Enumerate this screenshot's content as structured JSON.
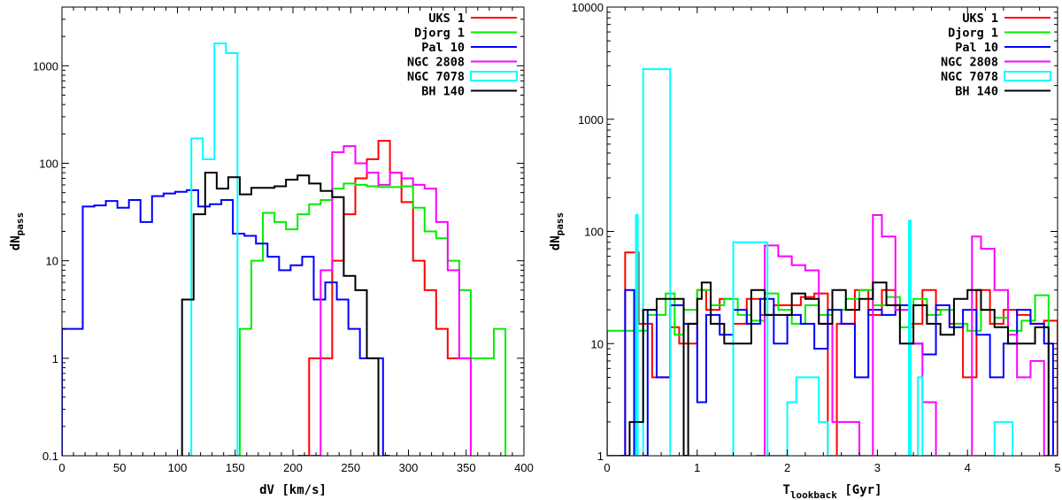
{
  "chart_data": [
    {
      "type": "line",
      "step": true,
      "xlabel": "dV [km/s]",
      "ylabel": "dN",
      "ylabel_sub": "pass",
      "xlim": [
        0,
        400
      ],
      "ylim": [
        0.1,
        4000
      ],
      "yscale": "log",
      "xticks": [
        0,
        50,
        100,
        150,
        200,
        250,
        300,
        350,
        400
      ],
      "yticks": [
        0.1,
        1,
        10,
        100,
        1000
      ],
      "ytick_labels": [
        "0.1",
        "1",
        "10",
        "100",
        "1000"
      ],
      "legend_position": "top-right",
      "series": [
        {
          "name": "UKS 1",
          "color": "#ff0000",
          "x": [
            204,
            214,
            224,
            234,
            244,
            254,
            264,
            274,
            284,
            294,
            304,
            314,
            324,
            334,
            344,
            354
          ],
          "y": [
            0.1,
            1,
            1,
            10,
            30,
            70,
            110,
            170,
            80,
            40,
            10,
            5,
            2,
            1,
            1,
            0.1
          ]
        },
        {
          "name": "Djorg 1",
          "color": "#00ee00",
          "x": [
            144,
            154,
            164,
            174,
            184,
            194,
            204,
            214,
            224,
            234,
            244,
            254,
            264,
            274,
            284,
            294,
            304,
            314,
            324,
            334,
            344,
            354,
            364,
            374,
            384
          ],
          "y": [
            0.1,
            2,
            10,
            31,
            25,
            21,
            30,
            38,
            42,
            55,
            62,
            60,
            58,
            57,
            57,
            58,
            35,
            20,
            17,
            10,
            5,
            1,
            1,
            2,
            0.1
          ]
        },
        {
          "name": "Pal 10",
          "color": "#0000ff",
          "x": [
            0,
            18,
            28,
            38,
            48,
            58,
            68,
            78,
            88,
            98,
            108,
            118,
            128,
            138,
            148,
            158,
            168,
            178,
            188,
            198,
            208,
            218,
            228,
            238,
            248,
            258,
            268,
            278,
            284
          ],
          "y": [
            2,
            36,
            37,
            41,
            35,
            42,
            25,
            46,
            49,
            51,
            53,
            36,
            38,
            42,
            19,
            18,
            15,
            11,
            8,
            9,
            11,
            4,
            6,
            4,
            2,
            1,
            1,
            0.1,
            0.1
          ]
        },
        {
          "name": "NGC 2808",
          "color": "#ff00ff",
          "x": [
            214,
            224,
            234,
            244,
            254,
            264,
            274,
            284,
            294,
            304,
            314,
            324,
            334,
            344,
            354
          ],
          "y": [
            0.1,
            8,
            130,
            150,
            100,
            80,
            60,
            80,
            70,
            60,
            55,
            25,
            8,
            1,
            0.1
          ]
        },
        {
          "name": "NGC 7078",
          "color": "#00ffff",
          "x": [
            112,
            122,
            132,
            142,
            152
          ],
          "y": [
            180,
            110,
            1700,
            1350,
            0.1
          ]
        },
        {
          "name": "BH 140",
          "color": "#000000",
          "x": [
            104,
            114,
            124,
            134,
            144,
            154,
            164,
            174,
            184,
            194,
            204,
            214,
            224,
            234,
            244,
            254,
            264,
            274
          ],
          "y": [
            4,
            30,
            80,
            55,
            72,
            48,
            56,
            56,
            58,
            68,
            75,
            62,
            52,
            45,
            7,
            5,
            1,
            0.1
          ]
        }
      ]
    },
    {
      "type": "line",
      "step": true,
      "xlabel": "T",
      "xlabel_sub": "lookback",
      "xlabel_unit": "[Gyr]",
      "ylabel": "dN",
      "ylabel_sub": "pass",
      "xlim": [
        0,
        5
      ],
      "ylim": [
        1,
        10000
      ],
      "yscale": "log",
      "xticks": [
        0,
        1,
        2,
        3,
        4,
        5
      ],
      "yticks": [
        1,
        10,
        100,
        1000,
        10000
      ],
      "ytick_labels": [
        "1",
        "10",
        "100",
        "1000",
        "10000"
      ],
      "legend_position": "top-right",
      "series": [
        {
          "name": "UKS 1",
          "color": "#ff0000",
          "x": [
            0,
            0.2,
            0.35,
            0.5,
            0.7,
            0.8,
            1.0,
            1.1,
            1.25,
            1.4,
            1.55,
            1.7,
            1.85,
            2.0,
            2.15,
            2.3,
            2.45,
            2.55,
            2.75,
            2.9,
            3.05,
            3.2,
            3.35,
            3.5,
            3.65,
            3.8,
            3.95,
            4.1,
            4.25,
            4.4,
            4.55,
            4.7,
            4.85,
            5.0
          ],
          "y": [
            1,
            65,
            15,
            5,
            14,
            10,
            30,
            20,
            25,
            15,
            25,
            18,
            22,
            22,
            26,
            28,
            1,
            15,
            30,
            18,
            30,
            20,
            15,
            30,
            20,
            15,
            5,
            30,
            15,
            20,
            18,
            15,
            16,
            14
          ]
        },
        {
          "name": "Djorg 1",
          "color": "#00ee00",
          "x": [
            0,
            0.3,
            0.45,
            0.65,
            0.75,
            0.85,
            1.0,
            1.15,
            1.3,
            1.45,
            1.6,
            1.75,
            1.9,
            2.05,
            2.2,
            2.35,
            2.5,
            2.65,
            2.8,
            2.95,
            3.1,
            3.25,
            3.4,
            3.55,
            3.7,
            3.85,
            4.0,
            4.15,
            4.3,
            4.45,
            4.6,
            4.75,
            4.9
          ],
          "y": [
            13,
            13,
            18,
            28,
            12,
            20,
            30,
            22,
            25,
            18,
            16,
            28,
            20,
            15,
            22,
            18,
            20,
            25,
            30,
            22,
            26,
            14,
            25,
            18,
            20,
            15,
            13,
            20,
            17,
            13,
            16,
            27,
            12
          ]
        },
        {
          "name": "Pal 10",
          "color": "#0000ff",
          "x": [
            0.2,
            0.3,
            0.45,
            0.55,
            0.7,
            0.85,
            1.0,
            1.1,
            1.25,
            1.4,
            1.55,
            1.7,
            1.85,
            2.0,
            2.15,
            2.3,
            2.45,
            2.6,
            2.75,
            2.9,
            3.05,
            3.2,
            3.35,
            3.5,
            3.65,
            3.8,
            3.95,
            4.1,
            4.25,
            4.4,
            4.55,
            4.7,
            4.85,
            4.95
          ],
          "y": [
            30,
            1,
            20,
            5,
            22,
            15,
            3,
            18,
            12,
            20,
            15,
            25,
            10,
            18,
            15,
            9,
            20,
            15,
            5,
            20,
            18,
            22,
            10,
            8,
            22,
            14,
            20,
            12,
            5,
            10,
            20,
            15,
            10,
            1
          ]
        },
        {
          "name": "NGC 2808",
          "color": "#ff00ff",
          "x": [
            1.65,
            1.75,
            1.9,
            2.05,
            2.2,
            2.35,
            2.5,
            2.65,
            2.8,
            2.95,
            3.05,
            3.2,
            3.35,
            3.5,
            3.65,
            3.8,
            3.95,
            4.05,
            4.15,
            4.3,
            4.45,
            4.55,
            4.7,
            4.85,
            5.0
          ],
          "y": [
            1,
            75,
            60,
            50,
            45,
            15,
            2,
            2,
            1,
            140,
            90,
            20,
            10,
            3,
            1,
            1,
            1,
            90,
            70,
            30,
            12,
            5,
            7,
            1,
            1
          ]
        },
        {
          "name": "NGC 7078",
          "color": "#00ffff",
          "x": [
            0.3,
            0.32,
            0.34,
            0.4,
            0.7,
            0.75,
            1.4,
            1.78,
            2.0,
            2.1,
            2.35,
            2.45,
            3.35,
            3.37,
            3.45,
            3.5,
            4.3,
            4.5
          ],
          "y": [
            1,
            140,
            1,
            2800,
            1,
            1,
            80,
            1,
            3,
            5,
            2,
            1,
            125,
            1,
            5,
            1,
            2,
            1
          ]
        },
        {
          "name": "BH 140",
          "color": "#000000",
          "x": [
            0.15,
            0.25,
            0.4,
            0.55,
            0.7,
            0.85,
            0.9,
            1.0,
            1.05,
            1.15,
            1.3,
            1.45,
            1.6,
            1.75,
            1.9,
            2.05,
            2.2,
            2.35,
            2.5,
            2.65,
            2.8,
            2.95,
            3.1,
            3.25,
            3.4,
            3.55,
            3.7,
            3.85,
            4.0,
            4.15,
            4.3,
            4.45,
            4.6,
            4.75,
            4.9
          ],
          "y": [
            1,
            2,
            20,
            25,
            25,
            1,
            15,
            25,
            35,
            15,
            10,
            10,
            30,
            18,
            18,
            28,
            25,
            15,
            30,
            20,
            25,
            35,
            22,
            10,
            22,
            15,
            12,
            25,
            30,
            20,
            14,
            10,
            10,
            14,
            12
          ]
        }
      ]
    }
  ]
}
